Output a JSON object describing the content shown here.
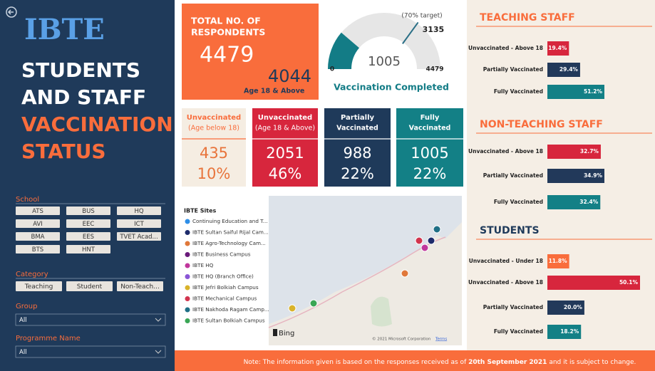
{
  "sidebar": {
    "logo": "IBTE",
    "title_lines": [
      "STUDENTS",
      "AND STAFF",
      "VACCINATION",
      "STATUS"
    ],
    "filters": {
      "school_label": "School",
      "schools": [
        "ATS",
        "BUS",
        "HQ",
        "AVI",
        "EEC",
        "ICT",
        "BMA",
        "EES",
        "TVET Acad...",
        "BTS",
        "HNT"
      ],
      "category_label": "Category",
      "categories": [
        "Teaching",
        "Student",
        "Non-Teach..."
      ],
      "group_label": "Group",
      "group_value": "All",
      "programme_label": "Programme Name",
      "programme_value": "All"
    }
  },
  "total": {
    "title_lines": [
      "TOTAL NO. OF",
      "RESPONDENTS"
    ],
    "count": 4479,
    "adult_count": 4044,
    "adult_label": "Age 18 & Above"
  },
  "cards": [
    {
      "title": "Unvaccinated",
      "subtitle": "(Age below 18)",
      "count": 435,
      "percent": "10%"
    },
    {
      "title": "Unvaccinated",
      "subtitle": "(Age 18 & Above)",
      "count": 2051,
      "percent": "46%"
    },
    {
      "title": "Partially",
      "subtitle": "Vaccinated",
      "count": 988,
      "percent": "22%"
    },
    {
      "title": "Fully",
      "subtitle": "Vaccinated",
      "count": 1005,
      "percent": "22%"
    }
  ],
  "map": {
    "legend_title": "IBTE Sites",
    "sites": [
      {
        "name": "Continuing Education and T...",
        "color": "#2f8fe8"
      },
      {
        "name": "IBTE  Sultan Saiful Rijal Cam...",
        "color": "#1d2b6b"
      },
      {
        "name": "IBTE Agro-Technology Cam...",
        "color": "#e0783a"
      },
      {
        "name": "IBTE Business Campus",
        "color": "#6a1b7a"
      },
      {
        "name": "IBTE HQ",
        "color": "#c0379c"
      },
      {
        "name": "IBTE HQ (Branch Office)",
        "color": "#8a56d6"
      },
      {
        "name": "IBTE Jefri Bolkiah Campus",
        "color": "#d9b32a"
      },
      {
        "name": "IBTE Mechanical Campus",
        "color": "#d2344e"
      },
      {
        "name": "IBTE Nakhoda Ragam Camp...",
        "color": "#1f6f86"
      },
      {
        "name": "IBTE Sultan Bolkiah Campus",
        "color": "#3aa655"
      }
    ],
    "provider": "Bing",
    "copyright": "© 2021 Microsoft Corporation",
    "terms": "Terms"
  },
  "footer": {
    "note_before": "Note: The information given is based on the responses received as of ",
    "date": "20th September 2021",
    "note_after": " and it is subject to change."
  },
  "chart_data": [
    {
      "type": "gauge",
      "title": "Vaccination Completed",
      "value": 1005,
      "min": 0,
      "max": 4479,
      "target": 3135,
      "target_label": "(70% target)",
      "color": "#137c86"
    },
    {
      "type": "bar",
      "title": "TEACHING STAFF",
      "categories": [
        "Unvaccinated - Above 18",
        "Partially Vaccinated",
        "Fully Vaccinated"
      ],
      "values": [
        19.4,
        29.4,
        51.2
      ],
      "value_labels": [
        "19.4%",
        "29.4%",
        "51.2%"
      ],
      "colors": [
        "#d7263d",
        "#22395a",
        "#138086"
      ]
    },
    {
      "type": "bar",
      "title": "NON-TEACHING STAFF",
      "categories": [
        "Unvaccinated - Above 18",
        "Partially Vaccinated",
        "Fully Vaccinated"
      ],
      "values": [
        32.7,
        34.9,
        32.4
      ],
      "value_labels": [
        "32.7%",
        "34.9%",
        "32.4%"
      ],
      "colors": [
        "#d7263d",
        "#22395a",
        "#138086"
      ]
    },
    {
      "type": "bar",
      "title": "STUDENTS",
      "categories": [
        "Unvaccinated - Under 18",
        "Unvaccinated - Above 18",
        "Partially Vaccinated",
        "Fully Vaccinated"
      ],
      "values": [
        11.8,
        50.1,
        20.0,
        18.2
      ],
      "value_labels": [
        "11.8%",
        "50.1%",
        "20.0%",
        "18.2%"
      ],
      "colors": [
        "#f96d3c",
        "#d7263d",
        "#22395a",
        "#138086"
      ]
    }
  ]
}
